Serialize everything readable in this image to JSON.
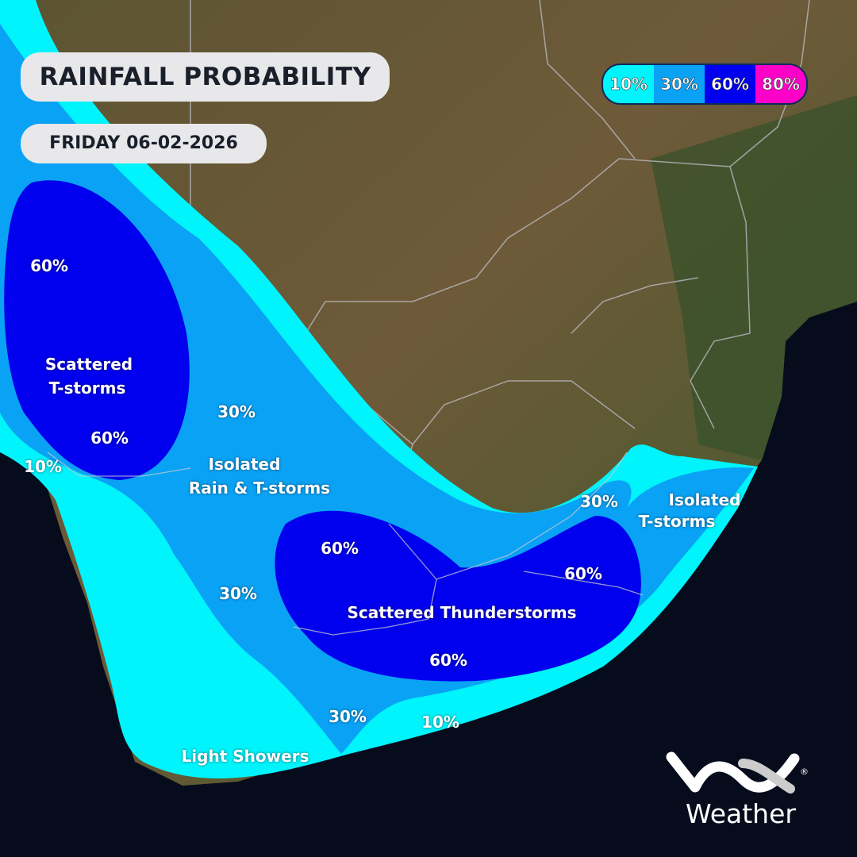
{
  "header": {
    "title": "RAINFALL PROBABILITY",
    "date": "FRIDAY 06-02-2026"
  },
  "legend": [
    {
      "label": "10%",
      "color": "#00f4fb"
    },
    {
      "label": "30%",
      "color": "#0aa2f5"
    },
    {
      "label": "60%",
      "color": "#0000ee"
    },
    {
      "label": "80%",
      "color": "#ff00c8"
    }
  ],
  "map_labels": {
    "west_60_top": "60%",
    "west_scattered": "Scattered",
    "west_tstorms": "T-storms",
    "west_60_bottom": "60%",
    "west_10": "10%",
    "central_30": "30%",
    "isolated_rain_1": "Isolated",
    "isolated_rain_2": "Rain & T-storms",
    "southwest_30": "30%",
    "central_60": "60%",
    "scattered_thunderstorms": "Scattered Thunderstorms",
    "south_60": "60%",
    "east_60": "60%",
    "east_30": "30%",
    "east_isolated_1": "Isolated",
    "east_isolated_2": "T-storms",
    "south_30": "30%",
    "south_10": "10%",
    "light_showers": "Light Showers"
  },
  "logo": {
    "brand": "VOX",
    "word": "Weather",
    "registered": "®"
  }
}
